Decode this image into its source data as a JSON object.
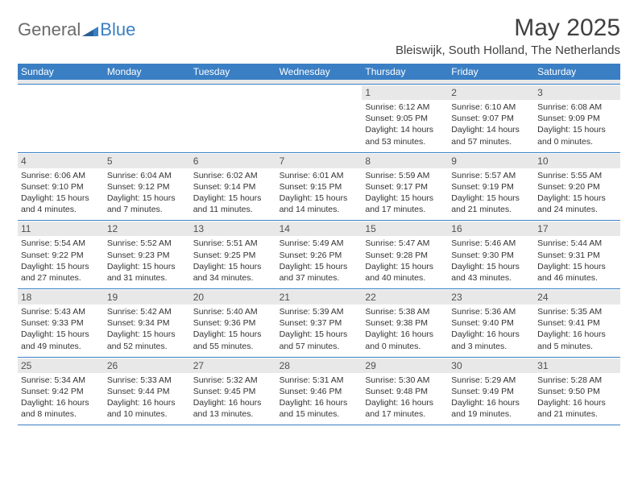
{
  "logo": {
    "part1": "General",
    "part2": "Blue"
  },
  "title": "May 2025",
  "location": "Bleiswijk, South Holland, The Netherlands",
  "colors": {
    "brand_blue": "#3a7fc4",
    "gray_bg": "#e8e8e8",
    "text": "#333333",
    "logo_gray": "#6b6b6b"
  },
  "weekdays": [
    "Sunday",
    "Monday",
    "Tuesday",
    "Wednesday",
    "Thursday",
    "Friday",
    "Saturday"
  ],
  "weeks": [
    [
      null,
      null,
      null,
      null,
      {
        "n": "1",
        "sr": "Sunrise: 6:12 AM",
        "ss": "Sunset: 9:05 PM",
        "dl": "Daylight: 14 hours and 53 minutes."
      },
      {
        "n": "2",
        "sr": "Sunrise: 6:10 AM",
        "ss": "Sunset: 9:07 PM",
        "dl": "Daylight: 14 hours and 57 minutes."
      },
      {
        "n": "3",
        "sr": "Sunrise: 6:08 AM",
        "ss": "Sunset: 9:09 PM",
        "dl": "Daylight: 15 hours and 0 minutes."
      }
    ],
    [
      {
        "n": "4",
        "sr": "Sunrise: 6:06 AM",
        "ss": "Sunset: 9:10 PM",
        "dl": "Daylight: 15 hours and 4 minutes."
      },
      {
        "n": "5",
        "sr": "Sunrise: 6:04 AM",
        "ss": "Sunset: 9:12 PM",
        "dl": "Daylight: 15 hours and 7 minutes."
      },
      {
        "n": "6",
        "sr": "Sunrise: 6:02 AM",
        "ss": "Sunset: 9:14 PM",
        "dl": "Daylight: 15 hours and 11 minutes."
      },
      {
        "n": "7",
        "sr": "Sunrise: 6:01 AM",
        "ss": "Sunset: 9:15 PM",
        "dl": "Daylight: 15 hours and 14 minutes."
      },
      {
        "n": "8",
        "sr": "Sunrise: 5:59 AM",
        "ss": "Sunset: 9:17 PM",
        "dl": "Daylight: 15 hours and 17 minutes."
      },
      {
        "n": "9",
        "sr": "Sunrise: 5:57 AM",
        "ss": "Sunset: 9:19 PM",
        "dl": "Daylight: 15 hours and 21 minutes."
      },
      {
        "n": "10",
        "sr": "Sunrise: 5:55 AM",
        "ss": "Sunset: 9:20 PM",
        "dl": "Daylight: 15 hours and 24 minutes."
      }
    ],
    [
      {
        "n": "11",
        "sr": "Sunrise: 5:54 AM",
        "ss": "Sunset: 9:22 PM",
        "dl": "Daylight: 15 hours and 27 minutes."
      },
      {
        "n": "12",
        "sr": "Sunrise: 5:52 AM",
        "ss": "Sunset: 9:23 PM",
        "dl": "Daylight: 15 hours and 31 minutes."
      },
      {
        "n": "13",
        "sr": "Sunrise: 5:51 AM",
        "ss": "Sunset: 9:25 PM",
        "dl": "Daylight: 15 hours and 34 minutes."
      },
      {
        "n": "14",
        "sr": "Sunrise: 5:49 AM",
        "ss": "Sunset: 9:26 PM",
        "dl": "Daylight: 15 hours and 37 minutes."
      },
      {
        "n": "15",
        "sr": "Sunrise: 5:47 AM",
        "ss": "Sunset: 9:28 PM",
        "dl": "Daylight: 15 hours and 40 minutes."
      },
      {
        "n": "16",
        "sr": "Sunrise: 5:46 AM",
        "ss": "Sunset: 9:30 PM",
        "dl": "Daylight: 15 hours and 43 minutes."
      },
      {
        "n": "17",
        "sr": "Sunrise: 5:44 AM",
        "ss": "Sunset: 9:31 PM",
        "dl": "Daylight: 15 hours and 46 minutes."
      }
    ],
    [
      {
        "n": "18",
        "sr": "Sunrise: 5:43 AM",
        "ss": "Sunset: 9:33 PM",
        "dl": "Daylight: 15 hours and 49 minutes."
      },
      {
        "n": "19",
        "sr": "Sunrise: 5:42 AM",
        "ss": "Sunset: 9:34 PM",
        "dl": "Daylight: 15 hours and 52 minutes."
      },
      {
        "n": "20",
        "sr": "Sunrise: 5:40 AM",
        "ss": "Sunset: 9:36 PM",
        "dl": "Daylight: 15 hours and 55 minutes."
      },
      {
        "n": "21",
        "sr": "Sunrise: 5:39 AM",
        "ss": "Sunset: 9:37 PM",
        "dl": "Daylight: 15 hours and 57 minutes."
      },
      {
        "n": "22",
        "sr": "Sunrise: 5:38 AM",
        "ss": "Sunset: 9:38 PM",
        "dl": "Daylight: 16 hours and 0 minutes."
      },
      {
        "n": "23",
        "sr": "Sunrise: 5:36 AM",
        "ss": "Sunset: 9:40 PM",
        "dl": "Daylight: 16 hours and 3 minutes."
      },
      {
        "n": "24",
        "sr": "Sunrise: 5:35 AM",
        "ss": "Sunset: 9:41 PM",
        "dl": "Daylight: 16 hours and 5 minutes."
      }
    ],
    [
      {
        "n": "25",
        "sr": "Sunrise: 5:34 AM",
        "ss": "Sunset: 9:42 PM",
        "dl": "Daylight: 16 hours and 8 minutes."
      },
      {
        "n": "26",
        "sr": "Sunrise: 5:33 AM",
        "ss": "Sunset: 9:44 PM",
        "dl": "Daylight: 16 hours and 10 minutes."
      },
      {
        "n": "27",
        "sr": "Sunrise: 5:32 AM",
        "ss": "Sunset: 9:45 PM",
        "dl": "Daylight: 16 hours and 13 minutes."
      },
      {
        "n": "28",
        "sr": "Sunrise: 5:31 AM",
        "ss": "Sunset: 9:46 PM",
        "dl": "Daylight: 16 hours and 15 minutes."
      },
      {
        "n": "29",
        "sr": "Sunrise: 5:30 AM",
        "ss": "Sunset: 9:48 PM",
        "dl": "Daylight: 16 hours and 17 minutes."
      },
      {
        "n": "30",
        "sr": "Sunrise: 5:29 AM",
        "ss": "Sunset: 9:49 PM",
        "dl": "Daylight: 16 hours and 19 minutes."
      },
      {
        "n": "31",
        "sr": "Sunrise: 5:28 AM",
        "ss": "Sunset: 9:50 PM",
        "dl": "Daylight: 16 hours and 21 minutes."
      }
    ]
  ]
}
